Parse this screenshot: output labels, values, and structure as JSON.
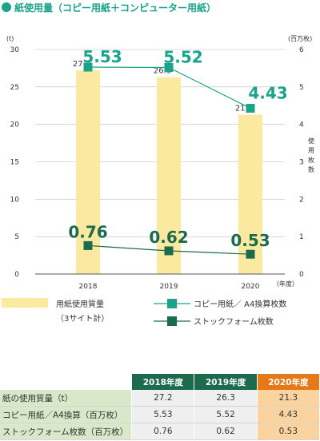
{
  "title": "紙使用量（コピー用紙＋コンピューター用紙）",
  "chart_data": {
    "type": "bar+line",
    "categories": [
      "2018",
      "2019",
      "2020"
    ],
    "x_unit": "（年度）",
    "y_left": {
      "unit": "(t)",
      "ylim": [
        0,
        30
      ],
      "ticks": [
        "0",
        "5",
        "10",
        "15",
        "20",
        "25",
        "30"
      ]
    },
    "y_right": {
      "unit": "(百万枚)",
      "title": "使用枚数",
      "ylim": [
        0,
        6
      ],
      "ticks": [
        "0",
        "1",
        "2",
        "3",
        "4",
        "5",
        "6"
      ]
    },
    "series": [
      {
        "name": "用紙使用質量",
        "subname": "（3サイト計）",
        "kind": "bar",
        "axis": "left",
        "color": "#fce9a0",
        "values": [
          27.2,
          26.3,
          21.3
        ],
        "labels": [
          "27.2",
          "26.3",
          "21.3"
        ]
      },
      {
        "name": "コピー用紙／ A4換算枚数",
        "kind": "line",
        "axis": "right",
        "color": "#1aa38a",
        "values": [
          5.53,
          5.52,
          4.43
        ],
        "labels": [
          "5.53",
          "5.52",
          "4.43"
        ]
      },
      {
        "name": "ストックフォーム枚数",
        "kind": "line",
        "axis": "right",
        "color": "#1c6b4c",
        "values": [
          0.76,
          0.62,
          0.53
        ],
        "labels": [
          "0.76",
          "0.62",
          "0.53"
        ]
      }
    ],
    "grid": true
  },
  "table": {
    "headers": [
      "2018年度",
      "2019年度",
      "2020年度"
    ],
    "rows": [
      {
        "label": "紙の使用質量（t）",
        "values": [
          "27.2",
          "26.3",
          "21.3"
        ]
      },
      {
        "label": "コピー用紙／A4換算（百万枚）",
        "values": [
          "5.53",
          "5.52",
          "4.43"
        ]
      },
      {
        "label": "ストックフォーム枚数（百万枚）",
        "values": [
          "0.76",
          "0.62",
          "0.53"
        ]
      }
    ]
  }
}
